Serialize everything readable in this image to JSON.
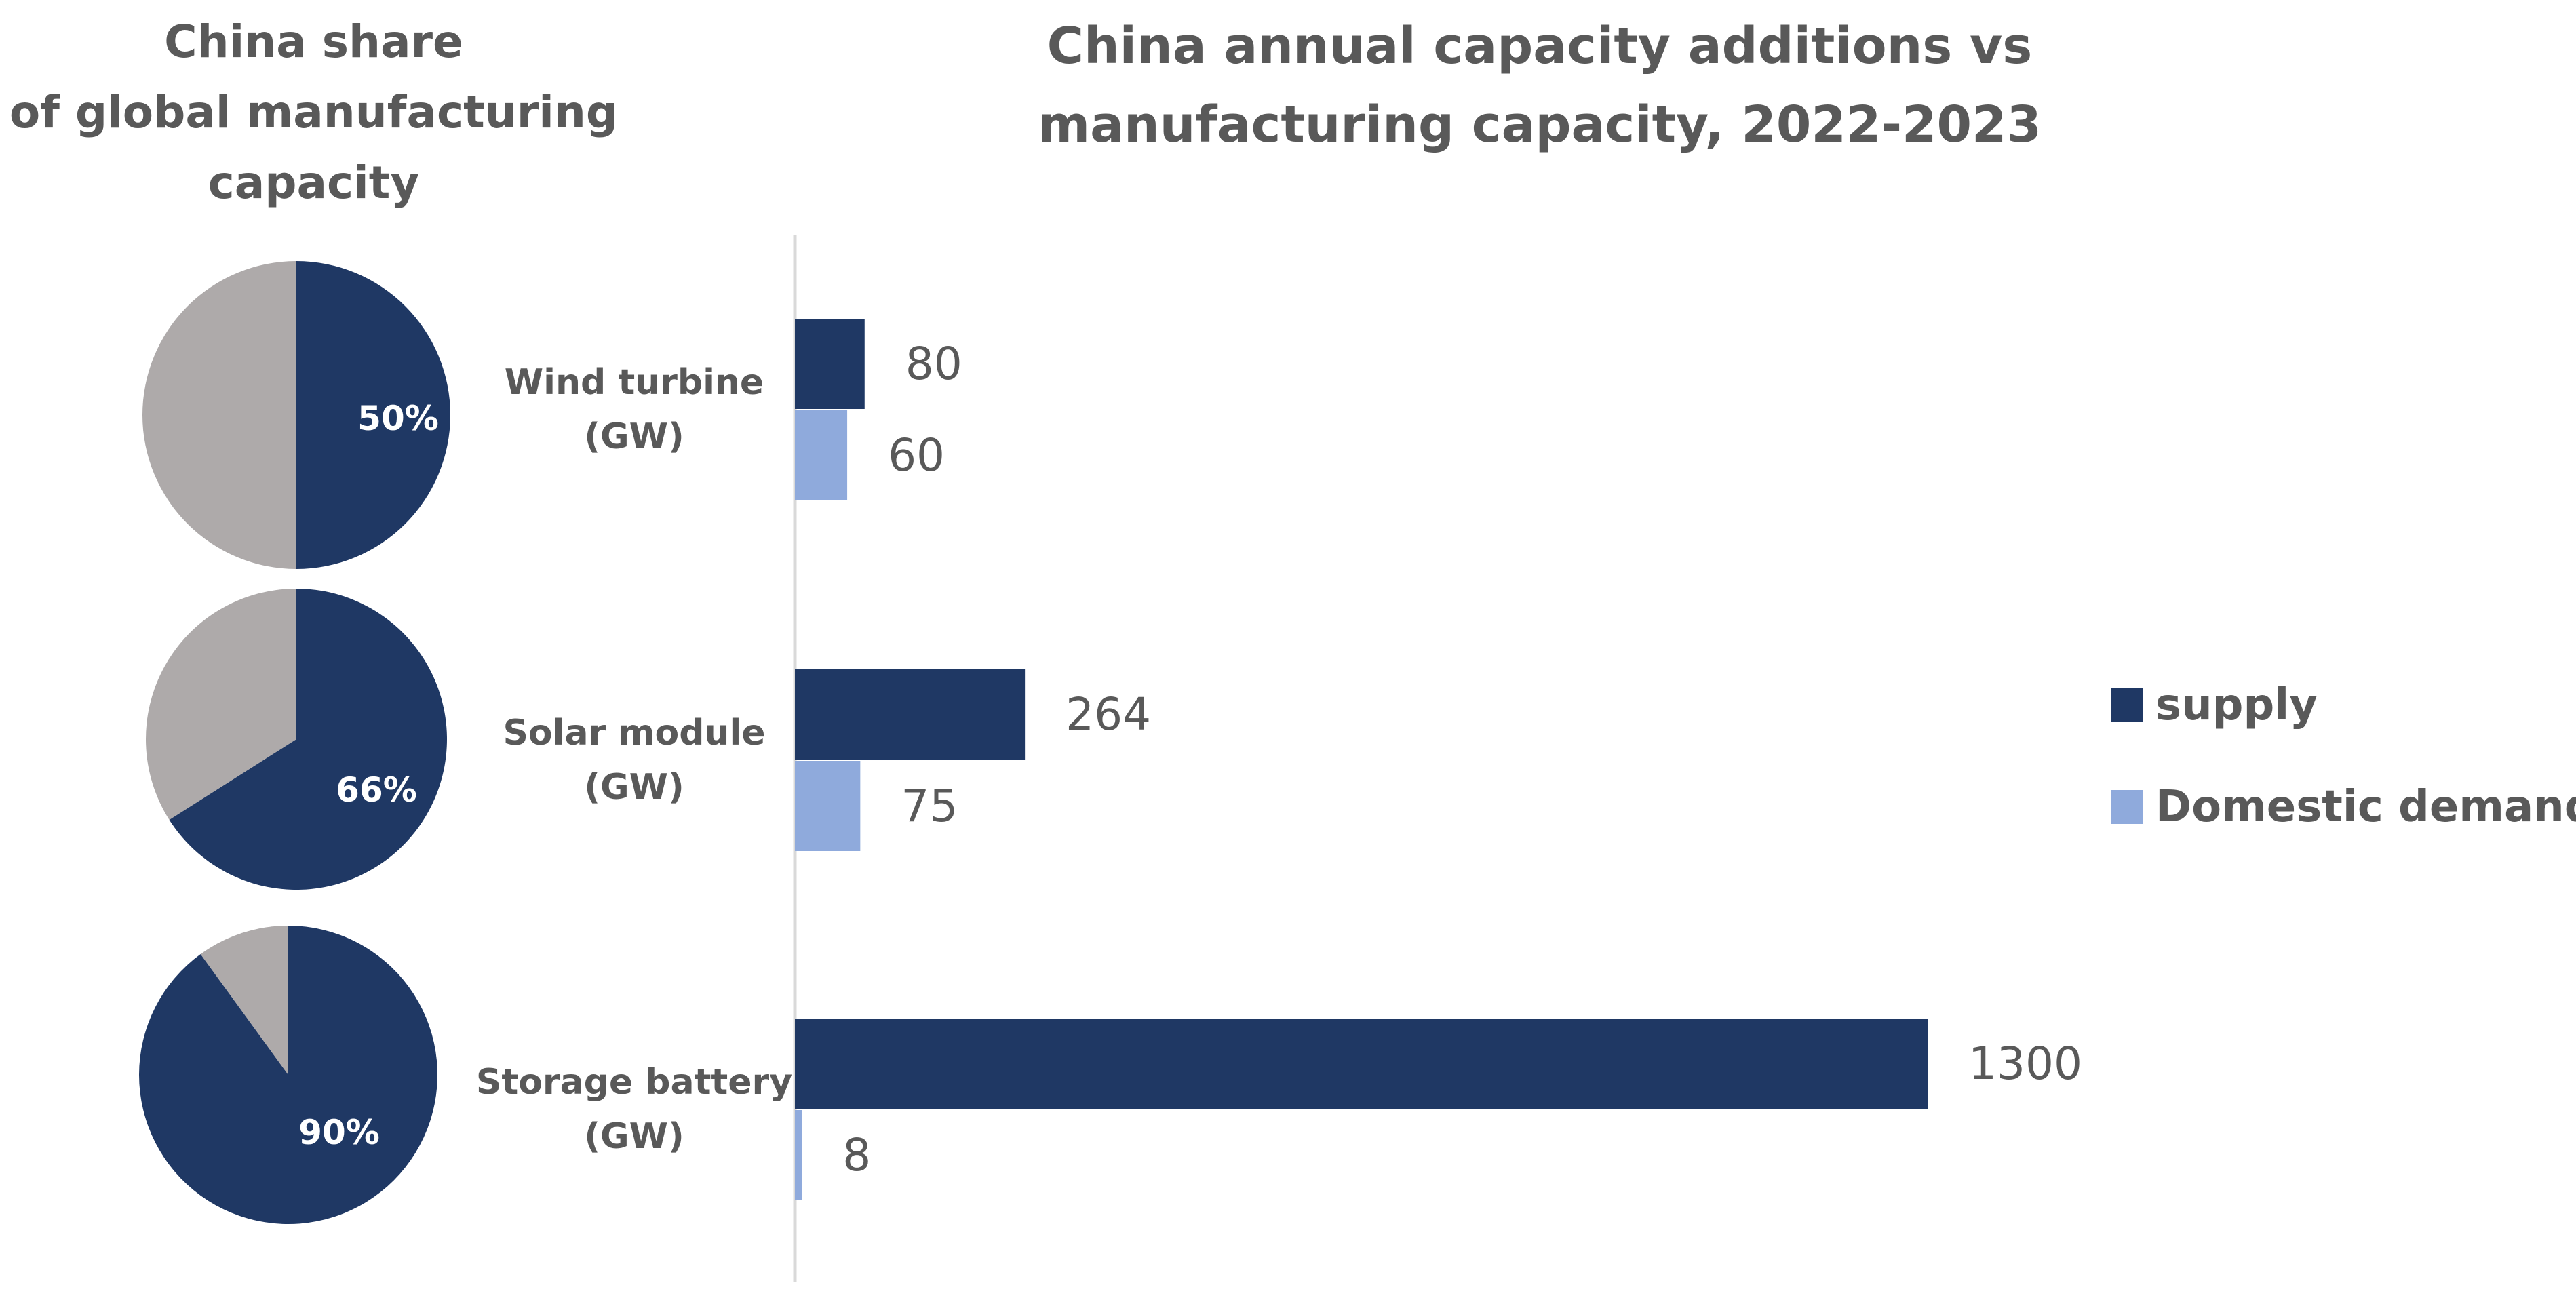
{
  "pie_title_lines": [
    "China share",
    "of global manufacturing",
    "capacity"
  ],
  "bar_title_lines": [
    "China annual capacity additions vs",
    "manufacturing capacity, 2022-2023"
  ],
  "colors": {
    "supply": "#1f3864",
    "demand": "#8faadc",
    "rest": "#aeaaaa",
    "text": "#595959",
    "axis": "#d9d9d9"
  },
  "chart_data": [
    {
      "type": "pie",
      "title": "China share of global manufacturing capacity",
      "pies": [
        {
          "category": "Wind turbine (GW)",
          "china_share": 50,
          "label": "50%"
        },
        {
          "category": "Solar module (GW)",
          "china_share": 66,
          "label": "66%"
        },
        {
          "category": "Storage battery (GW)",
          "china_share": 90,
          "label": "90%"
        }
      ]
    },
    {
      "type": "bar",
      "orientation": "horizontal",
      "title": "China annual capacity additions vs manufacturing capacity, 2022-2023",
      "categories": [
        {
          "lines": [
            "Wind turbine",
            "(GW)"
          ]
        },
        {
          "lines": [
            "Solar module",
            "(GW)"
          ]
        },
        {
          "lines": [
            "Storage battery",
            "(GW)"
          ]
        }
      ],
      "series": [
        {
          "name": "supply",
          "values": [
            80,
            264,
            1300
          ]
        },
        {
          "name": "Domestic demand",
          "values": [
            60,
            75,
            8
          ]
        }
      ],
      "xlim": [
        0,
        1300
      ],
      "data_labels": true,
      "grid": false,
      "legend": "right"
    }
  ]
}
